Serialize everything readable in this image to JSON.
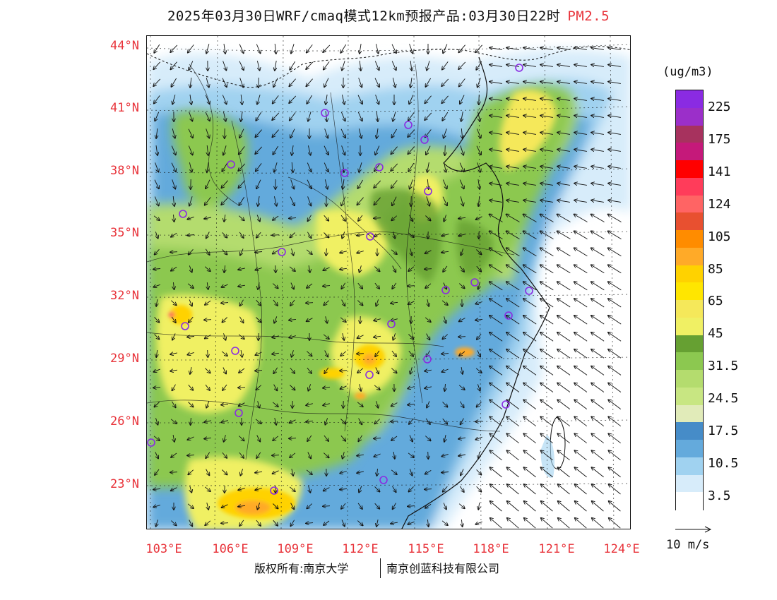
{
  "title": {
    "text": "2025年03月30日WRF/cmaq模式12km预报产品:03月30日22时",
    "pollutant": "PM2.5",
    "pollutant_color": "#e8333a"
  },
  "map": {
    "lat_labels": [
      "44°N",
      "41°N",
      "38°N",
      "35°N",
      "32°N",
      "29°N",
      "26°N",
      "23°N"
    ],
    "lon_labels": [
      "103°E",
      "106°E",
      "109°E",
      "112°E",
      "115°E",
      "118°E",
      "121°E",
      "124°E"
    ],
    "label_color": "#e8333a",
    "lon_range": [
      103,
      124
    ],
    "lat_range": [
      21,
      44.5
    ]
  },
  "colorbar": {
    "units": "(ug/m3)",
    "labels": [
      "225",
      "175",
      "141",
      "124",
      "105",
      "85",
      "65",
      "45",
      "31.5",
      "24.5",
      "17.5",
      "10.5",
      "3.5"
    ],
    "colors_top_to_bottom": [
      "#8a2be2",
      "#9b2fc9",
      "#a7325e",
      "#c5197a",
      "#ff0000",
      "#ff3c5a",
      "#ff6464",
      "#e85030",
      "#ff8c00",
      "#ffaa28",
      "#ffd200",
      "#ffe600",
      "#f5e85a",
      "#f0f064",
      "#66a032",
      "#8cc850",
      "#b4dc6e",
      "#c8e682",
      "#e1ebb9",
      "#468cc8",
      "#64aadc",
      "#a0d2f0",
      "#d7ecfa",
      "#ffffff"
    ]
  },
  "wind_vector": {
    "label": "10 m/s"
  },
  "credits": {
    "left": "版权所有:南京大学",
    "right": "南京创蓝科技有限公司"
  }
}
